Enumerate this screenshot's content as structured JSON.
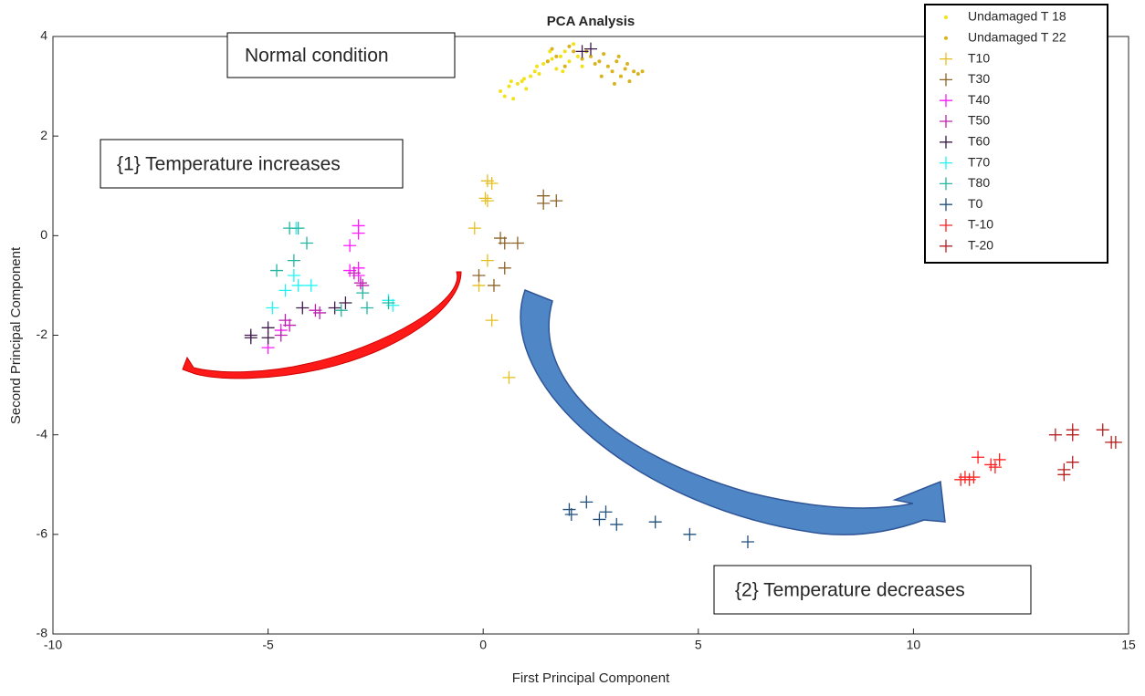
{
  "chart_data": {
    "type": "scatter",
    "title": "PCA Analysis",
    "x_label": "First Principal Component",
    "y_label": "Second Principal Component",
    "xlim": [
      -10,
      15
    ],
    "ylim": [
      -8,
      4
    ],
    "xticks": [
      -10,
      -5,
      0,
      5,
      10,
      15
    ],
    "yticks": [
      -8,
      -6,
      -4,
      -2,
      0,
      2,
      4
    ],
    "legend": "top-right",
    "annotations": [
      "Normal condition",
      "{1} Temperature increases",
      "{2} Temperature decreases"
    ],
    "series": [
      {
        "name": "Undamaged T 18",
        "marker": "dot",
        "color": "#f2e21a",
        "x": [
          0.4,
          0.5,
          0.6,
          0.7,
          0.8,
          0.9,
          1.0,
          1.1,
          1.2,
          1.3,
          1.4,
          1.5,
          1.6,
          1.7,
          1.8,
          1.9,
          2.0,
          2.1,
          2.2,
          2.3,
          0.65,
          0.95,
          1.25,
          1.55,
          1.85
        ],
        "y": [
          2.9,
          2.8,
          3.0,
          2.75,
          3.05,
          3.1,
          2.95,
          3.2,
          3.3,
          3.25,
          3.45,
          3.5,
          3.55,
          3.35,
          3.6,
          3.7,
          3.5,
          3.85,
          3.6,
          3.4,
          3.1,
          3.15,
          3.4,
          3.7,
          3.3
        ]
      },
      {
        "name": "Undamaged T 22",
        "marker": "dot",
        "color": "#d9b21c",
        "x": [
          1.5,
          1.7,
          1.9,
          2.1,
          2.3,
          2.5,
          2.6,
          2.7,
          2.8,
          2.9,
          3.0,
          3.1,
          3.2,
          3.3,
          3.4,
          3.5,
          3.6,
          3.7,
          1.6,
          2.0,
          2.4,
          2.75,
          3.05,
          3.35,
          3.15
        ],
        "y": [
          3.5,
          3.6,
          3.4,
          3.7,
          3.55,
          3.6,
          3.45,
          3.5,
          3.65,
          3.4,
          3.3,
          3.5,
          3.2,
          3.35,
          3.1,
          3.3,
          3.25,
          3.3,
          3.75,
          3.8,
          3.7,
          3.2,
          3.05,
          3.45,
          3.6
        ]
      },
      {
        "name": "T10",
        "marker": "plus",
        "color": "#e6bf1f",
        "x": [
          0.1,
          0.2,
          0.05,
          0.1,
          -0.2,
          0.1,
          -0.1,
          0.2,
          0.6
        ],
        "y": [
          1.1,
          1.05,
          0.75,
          0.7,
          0.15,
          -0.5,
          -1.0,
          -1.7,
          -2.85
        ]
      },
      {
        "name": "T30",
        "marker": "plus",
        "color": "#8c6428",
        "x": [
          1.4,
          1.4,
          1.7,
          0.4,
          0.5,
          0.8,
          0.5,
          -0.1,
          0.25
        ],
        "y": [
          0.8,
          0.65,
          0.7,
          -0.05,
          -0.15,
          -0.15,
          -0.65,
          -0.8,
          -1.0
        ]
      },
      {
        "name": "T40",
        "marker": "plus",
        "color": "#ff1aff",
        "x": [
          -2.9,
          -2.9,
          -3.1,
          -3.1,
          -2.9,
          -2.9,
          -4.7,
          -5.0
        ],
        "y": [
          0.2,
          0.05,
          -0.2,
          -0.7,
          -0.65,
          -0.8,
          -1.9,
          -2.25
        ]
      },
      {
        "name": "T50",
        "marker": "plus",
        "color": "#c020b0",
        "x": [
          -3.0,
          -2.8,
          -2.85,
          -3.8,
          -3.9,
          -4.6,
          -4.5,
          -4.7
        ],
        "y": [
          -0.75,
          -1.0,
          -0.95,
          -1.55,
          -1.5,
          -1.7,
          -1.8,
          -2.0
        ]
      },
      {
        "name": "T60",
        "marker": "plus",
        "color": "#3c1a4a",
        "x": [
          -5.0,
          -5.0,
          -5.4,
          -5.4,
          -4.2,
          -3.2,
          -3.45,
          2.3,
          2.5
        ],
        "y": [
          -1.85,
          -2.05,
          -2.0,
          -2.05,
          -1.45,
          -1.35,
          -1.45,
          3.7,
          3.75
        ]
      },
      {
        "name": "T70",
        "marker": "plus",
        "color": "#1ff5f5",
        "x": [
          -4.4,
          -4.3,
          -4.6,
          -4.9,
          -4.0,
          -2.2,
          -2.1,
          -4.35
        ],
        "y": [
          -0.8,
          -1.0,
          -1.1,
          -1.45,
          -1.0,
          -1.3,
          -1.4,
          0.15
        ]
      },
      {
        "name": "T80",
        "marker": "plus",
        "color": "#26b5a0",
        "x": [
          -4.5,
          -4.3,
          -4.1,
          -4.4,
          -4.8,
          -3.3,
          -2.7,
          -2.8,
          -2.2
        ],
        "y": [
          0.15,
          0.15,
          -0.15,
          -0.5,
          -0.7,
          -1.5,
          -1.45,
          -1.15,
          -1.35
        ]
      },
      {
        "name": "T0",
        "marker": "plus",
        "color": "#21527f",
        "x": [
          2.0,
          2.05,
          2.4,
          2.7,
          2.85,
          3.1,
          4.0,
          4.8,
          6.15
        ],
        "y": [
          -5.5,
          -5.6,
          -5.35,
          -5.7,
          -5.55,
          -5.8,
          -5.75,
          -6.0,
          -6.15
        ]
      },
      {
        "name": "T-10",
        "marker": "plus",
        "color": "#ff2020",
        "x": [
          11.1,
          11.3,
          11.4,
          11.5,
          11.8,
          11.9,
          12.0,
          11.2
        ],
        "y": [
          -4.9,
          -4.9,
          -4.85,
          -4.45,
          -4.6,
          -4.65,
          -4.5,
          -4.85
        ]
      },
      {
        "name": "T-20",
        "marker": "plus",
        "color": "#b52020",
        "x": [
          13.3,
          13.7,
          13.7,
          14.4,
          14.6,
          14.7,
          13.5,
          13.5,
          13.7
        ],
        "y": [
          -4.0,
          -3.9,
          -4.0,
          -3.9,
          -4.15,
          -4.15,
          -4.7,
          -4.8,
          -4.55
        ]
      }
    ]
  }
}
